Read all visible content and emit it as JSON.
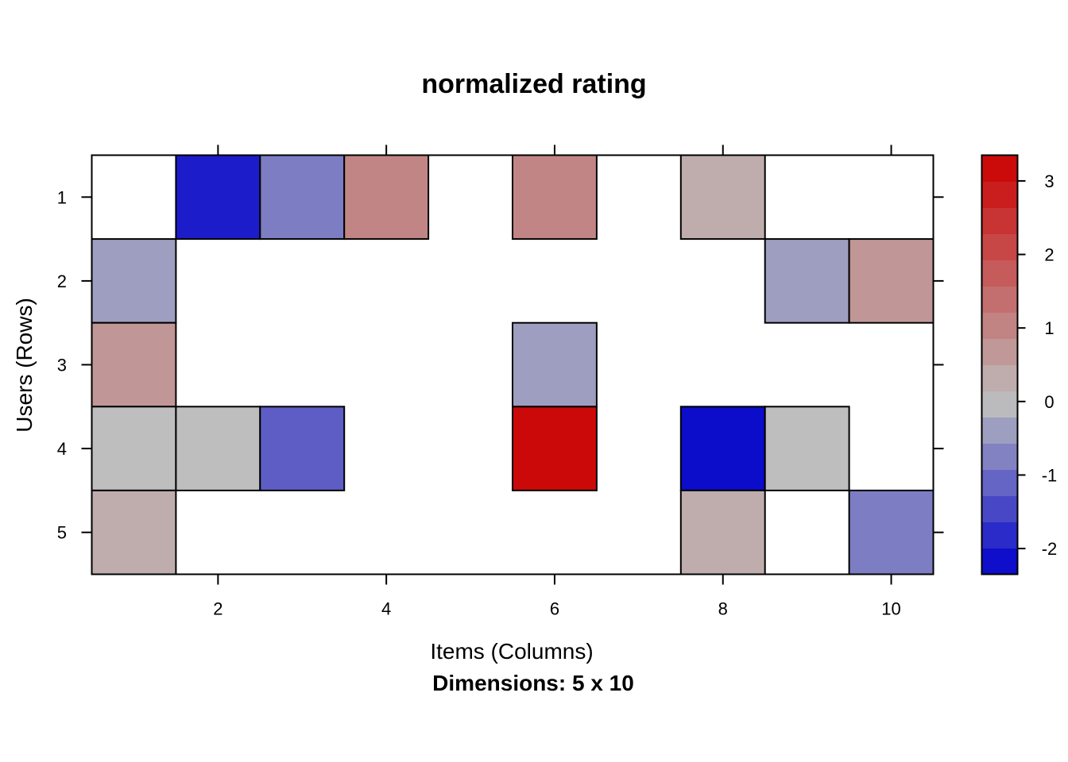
{
  "chart_data": {
    "type": "heatmap",
    "title": "normalized rating",
    "xlabel": "Items (Columns)",
    "ylabel": "Users (Rows)",
    "sub": "Dimensions: 5 x 10",
    "x_ticks": [
      "2",
      "4",
      "6",
      "8",
      "10"
    ],
    "y_ticks": [
      "1",
      "2",
      "3",
      "4",
      "5"
    ],
    "colorbar_ticks": [
      "-2",
      "-1",
      "0",
      "1",
      "2",
      "3"
    ],
    "zlim": [
      -2.35,
      3.35
    ],
    "colors": {
      "low": "#0000CC",
      "mid": "#BEBEBE",
      "high": "#CC0000"
    },
    "cells": [
      {
        "row": 1,
        "col": 2,
        "value": -2.0
      },
      {
        "row": 1,
        "col": 3,
        "value": -0.8
      },
      {
        "row": 1,
        "col": 4,
        "value": 1.0
      },
      {
        "row": 1,
        "col": 6,
        "value": 1.0
      },
      {
        "row": 1,
        "col": 8,
        "value": 0.3
      },
      {
        "row": 2,
        "col": 1,
        "value": -0.4
      },
      {
        "row": 2,
        "col": 9,
        "value": -0.4
      },
      {
        "row": 2,
        "col": 10,
        "value": 0.7
      },
      {
        "row": 3,
        "col": 1,
        "value": 0.7
      },
      {
        "row": 3,
        "col": 6,
        "value": -0.4
      },
      {
        "row": 4,
        "col": 1,
        "value": 0.0
      },
      {
        "row": 4,
        "col": 2,
        "value": 0.0
      },
      {
        "row": 4,
        "col": 3,
        "value": -1.2
      },
      {
        "row": 4,
        "col": 6,
        "value": 3.2
      },
      {
        "row": 4,
        "col": 8,
        "value": -2.2
      },
      {
        "row": 4,
        "col": 9,
        "value": 0.0
      },
      {
        "row": 5,
        "col": 1,
        "value": 0.3
      },
      {
        "row": 5,
        "col": 8,
        "value": 0.3
      },
      {
        "row": 5,
        "col": 10,
        "value": -0.8
      }
    ],
    "nrows": 5,
    "ncols": 10
  }
}
